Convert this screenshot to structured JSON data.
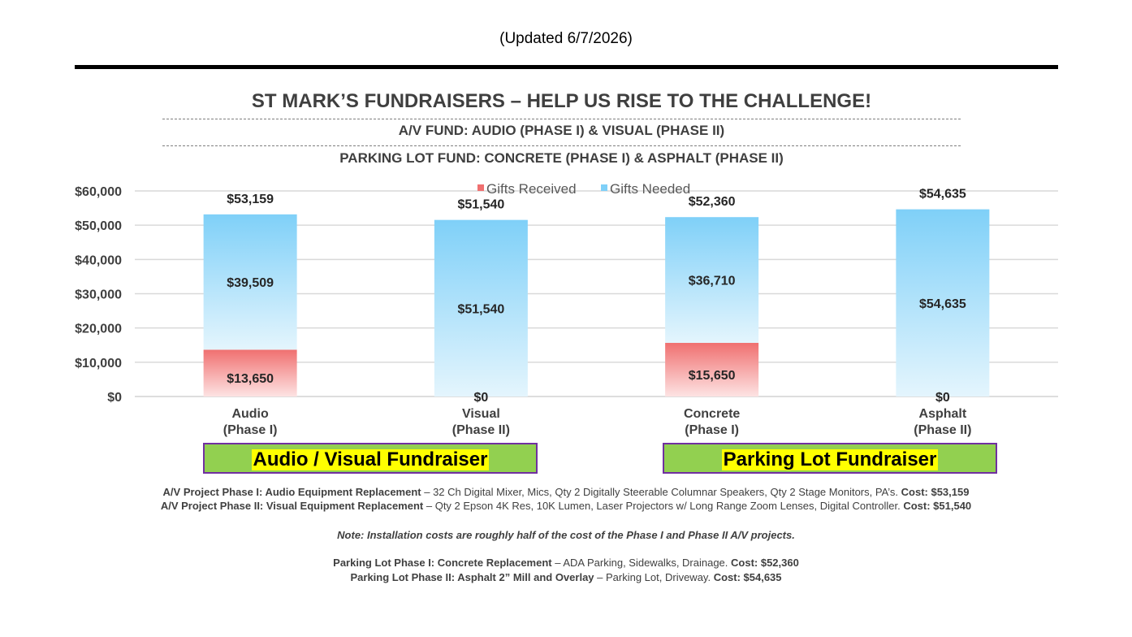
{
  "header": {
    "updated": "(Updated 6/7/2026)",
    "title": "ST MARK’S FUNDRAISERS – HELP US RISE TO THE CHALLENGE!",
    "subtitle1": "A/V FUND: AUDIO (PHASE I) & VISUAL (PHASE II)",
    "subtitle2": "PARKING LOT FUND: CONCRETE (PHASE I) & ASPHALT (PHASE II)"
  },
  "chart_data": {
    "type": "bar",
    "stacked": true,
    "categories": [
      [
        "Audio",
        "(Phase I)"
      ],
      [
        "Visual",
        "(Phase II)"
      ],
      [
        "Concrete",
        "(Phase I)"
      ],
      [
        "Asphalt",
        "(Phase II)"
      ]
    ],
    "series": [
      {
        "name": "Gifts Received",
        "values": [
          13650,
          0,
          15650,
          0
        ],
        "labels": [
          "$13,650",
          "$0",
          "$15,650",
          "$0"
        ],
        "color": "#f07070"
      },
      {
        "name": "Gifts Needed",
        "values": [
          39509,
          51540,
          36710,
          54635
        ],
        "labels": [
          "$39,509",
          "$51,540",
          "$36,710",
          "$54,635"
        ],
        "color": "#7fd0f8"
      }
    ],
    "totals": [
      "$53,159",
      "$51,540",
      "$52,360",
      "$54,635"
    ],
    "y_ticks": [
      "$0",
      "$10,000",
      "$20,000",
      "$30,000",
      "$40,000",
      "$50,000",
      "$60,000"
    ],
    "ylim": [
      0,
      60000
    ],
    "grid": true,
    "legend": "top-center"
  },
  "funds": {
    "av": "Audio / Visual Fundraiser",
    "parking": "Parking Lot Fundraiser"
  },
  "descriptions": {
    "av1_title": "A/V Project Phase I: Audio Equipment Replacement",
    "av1_text": " – 32 Ch Digital Mixer, Mics, Qty 2 Digitally Steerable Columnar Speakers, Qty 2 Stage Monitors, PA’s.  ",
    "av1_cost": "Cost: $53,159",
    "av2_title": "A/V Project Phase II: Visual Equipment Replacement",
    "av2_text": " – Qty 2 Epson 4K Res, 10K Lumen, Laser Projectors w/ Long Range Zoom Lenses, Digital Controller.  ",
    "av2_cost": "Cost: $51,540",
    "note": "Note: Installation costs are roughly half of the cost of the Phase I and Phase II A/V projects.",
    "pl1_title": "Parking Lot Phase I: Concrete Replacement",
    "pl1_text": " – ADA Parking, Sidewalks, Drainage.  ",
    "pl1_cost": "Cost: $52,360",
    "pl2_title": "Parking Lot Phase II: Asphalt 2” Mill and Overlay",
    "pl2_text": " – Parking Lot, Driveway.  ",
    "pl2_cost": "Cost: $54,635"
  }
}
